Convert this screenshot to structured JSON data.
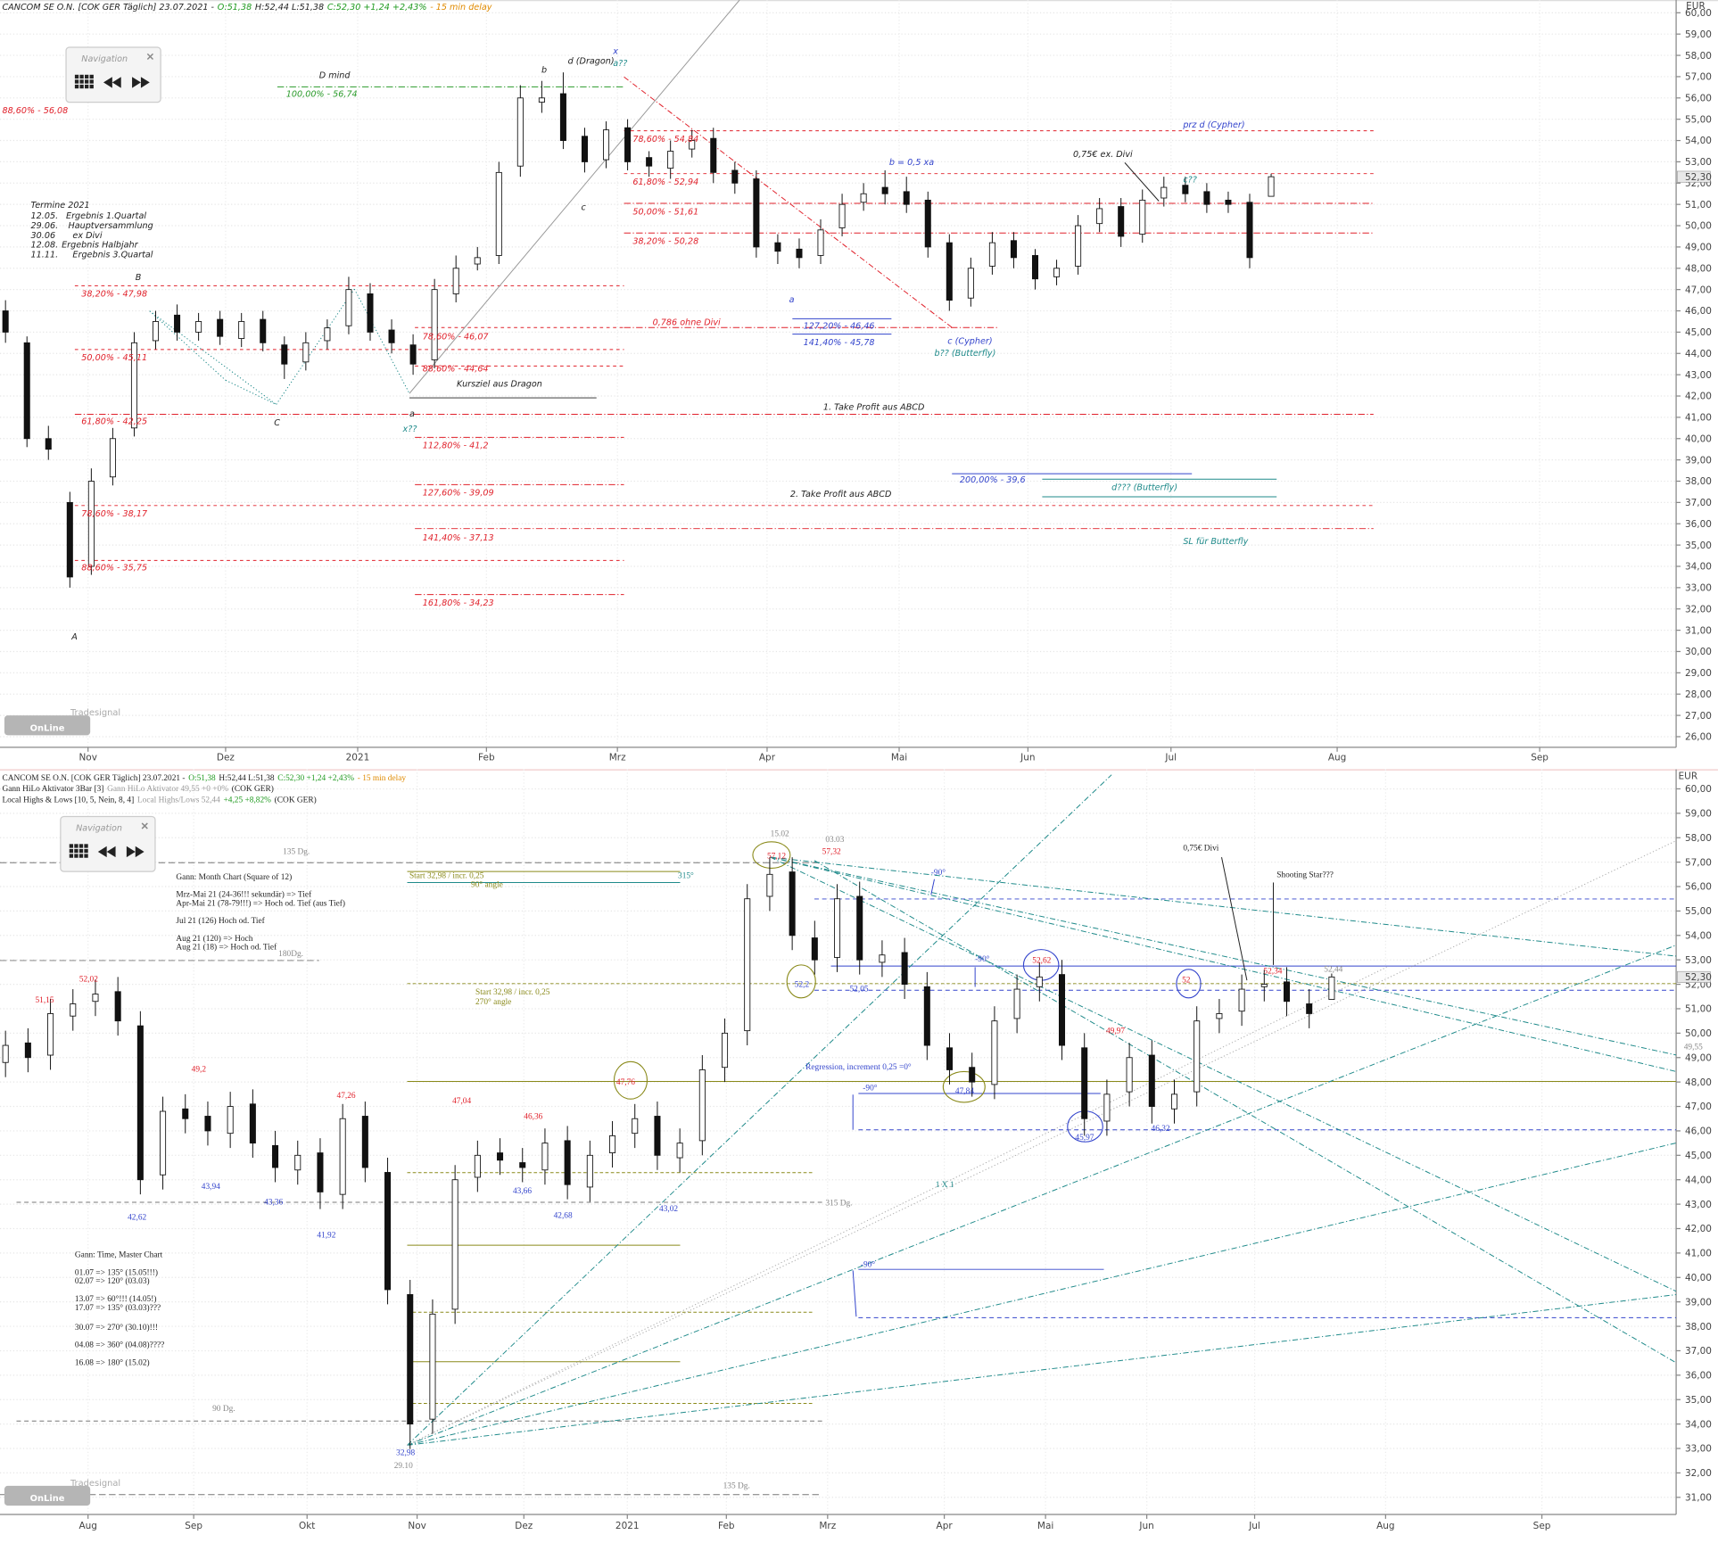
{
  "logo": {
    "brand": "Tradesignal",
    "name": "OnLine"
  },
  "chart_data": [
    {
      "type": "candlestick",
      "header": [
        [
          {
            "text": "CANCOM SE O.N. [COK GER Täglich] 23.07.2021 -",
            "color": "#222222"
          },
          {
            "text": "O:51,38",
            "color": "#1f9a1f"
          },
          {
            "text": "H:52,44 L:51,38",
            "color": "#222222"
          },
          {
            "text": "C:52,30 +1,24 +2,43%",
            "color": "#1f9a1f"
          },
          {
            "text": "- 15 min delay",
            "color": "#e08a00"
          }
        ]
      ],
      "navigation": "Navigation",
      "y_unit": "EUR",
      "last_price": "52,30",
      "ylim": [
        25.5,
        60.6
      ],
      "yticks": [
        {
          "value": 26,
          "label": "26,00"
        },
        {
          "value": 27,
          "label": "27,00"
        },
        {
          "value": 28,
          "label": "28,00"
        },
        {
          "value": 29,
          "label": "29,00"
        },
        {
          "value": 30,
          "label": "30,00"
        },
        {
          "value": 31,
          "label": "31,00"
        },
        {
          "value": 32,
          "label": "32,00"
        },
        {
          "value": 33,
          "label": "33,00"
        },
        {
          "value": 34,
          "label": "34,00"
        },
        {
          "value": 35,
          "label": "35,00"
        },
        {
          "value": 36,
          "label": "36,00"
        },
        {
          "value": 37,
          "label": "37,00"
        },
        {
          "value": 38,
          "label": "38,00"
        },
        {
          "value": 39,
          "label": "39,00"
        },
        {
          "value": 40,
          "label": "40,00"
        },
        {
          "value": 41,
          "label": "41,00"
        },
        {
          "value": 42,
          "label": "42,00"
        },
        {
          "value": 43,
          "label": "43,00"
        },
        {
          "value": 44,
          "label": "44,00"
        },
        {
          "value": 45,
          "label": "45,00"
        },
        {
          "value": 46,
          "label": "46,00"
        },
        {
          "value": 47,
          "label": "47,00"
        },
        {
          "value": 48,
          "label": "48,00"
        },
        {
          "value": 49,
          "label": "49,00"
        },
        {
          "value": 50,
          "label": "50,00"
        },
        {
          "value": 51,
          "label": "51,00"
        },
        {
          "value": 52,
          "label": "52,00"
        },
        {
          "value": 53,
          "label": "53,00"
        },
        {
          "value": 54,
          "label": "54,00"
        },
        {
          "value": 55,
          "label": "55,00"
        },
        {
          "value": 56,
          "label": "56,00"
        },
        {
          "value": 57,
          "label": "57,00"
        },
        {
          "value": 58,
          "label": "58,00"
        },
        {
          "value": 59,
          "label": "59,00"
        },
        {
          "value": 60,
          "label": "60,00"
        }
      ],
      "grid": true,
      "x_labels": [
        "Nov",
        "Dez",
        "2021",
        "Feb",
        "Mrz",
        "Apr",
        "Mai",
        "Jun",
        "Jul",
        "Aug",
        "Sep"
      ],
      "up_color": "#ffffff",
      "down_color": "#111111",
      "open": [
        46,
        44.5,
        40,
        37,
        34,
        38.2,
        40.5,
        44.6,
        45.8,
        45,
        45.6,
        44.7,
        45.6,
        44.4,
        43.6,
        44.6,
        45.3,
        46.8,
        45.1,
        44.4,
        43.7,
        46.8,
        48.2,
        48.6,
        52.8,
        55.8,
        56.2,
        54.2,
        53.1,
        54.6,
        53.2,
        52.7,
        53.6,
        54.1,
        52.6,
        52.2,
        49.2,
        48.9,
        48.6,
        49.9,
        51.1,
        51.8,
        51.6,
        51.2,
        49.2,
        46.6,
        48.1,
        49.3,
        48.6,
        47.6,
        48.1,
        50.1,
        50.9,
        49.6,
        51.3,
        51.9,
        51.6,
        51.2,
        51.1,
        51.38
      ],
      "high": [
        46.5,
        44.8,
        40.6,
        37.5,
        38.6,
        40.5,
        45,
        46,
        46.3,
        45.9,
        46,
        45.9,
        46,
        44.8,
        45,
        45.6,
        47.6,
        47.3,
        45.6,
        44.9,
        47.5,
        48.6,
        49,
        53,
        56.6,
        56.8,
        57.2,
        54.6,
        54.9,
        55,
        53.5,
        54,
        54.5,
        54.6,
        53,
        52.6,
        49.6,
        49.4,
        50.3,
        51.5,
        52,
        52.6,
        52.3,
        51.6,
        49.6,
        48.5,
        49.7,
        49.7,
        48.9,
        48.4,
        50.5,
        51.3,
        51.3,
        51.7,
        52.3,
        52.3,
        52,
        51.6,
        51.5,
        52.44
      ],
      "low": [
        44.5,
        39.6,
        39,
        33,
        33.6,
        37.8,
        40.1,
        44.2,
        44.6,
        44.6,
        44.4,
        44.3,
        44.1,
        42.8,
        43.2,
        44.2,
        44.9,
        44.6,
        44,
        43,
        43.3,
        46.4,
        47.9,
        48.2,
        52.3,
        55.3,
        53.6,
        52.5,
        52.7,
        52.6,
        52.3,
        52.2,
        53.2,
        52,
        51.5,
        48.5,
        48.2,
        48,
        48.2,
        49.5,
        50.7,
        51,
        50.6,
        48.5,
        46,
        46.2,
        47.7,
        48,
        47,
        47.2,
        47.7,
        49.7,
        49,
        49.2,
        50.9,
        51.1,
        50.6,
        50.6,
        48,
        51.38
      ],
      "close": [
        45,
        40,
        39.5,
        33.5,
        38,
        40,
        44.5,
        45.5,
        45,
        45.5,
        44.8,
        45.5,
        44.5,
        43.5,
        44.5,
        45.2,
        47,
        45,
        44.5,
        43.5,
        47,
        48,
        48.5,
        52.5,
        56,
        56,
        54,
        53,
        54.5,
        53,
        52.8,
        53.5,
        54,
        52.5,
        52,
        49,
        48.8,
        48.5,
        49.8,
        51,
        51.5,
        51.5,
        51,
        49,
        46.5,
        48,
        49.2,
        48.5,
        47.5,
        48,
        50,
        50.8,
        49.5,
        51.2,
        51.8,
        51.5,
        51,
        51,
        48.5,
        52.3
      ],
      "annotations": [
        "D mind",
        "100,00% - 56,74",
        "88,60% - 56,08",
        "b",
        "d (Dragon)",
        "x",
        "a??",
        "c",
        "78,60% - 54,84",
        "61,80% - 52,94",
        "50,00% - 51,61",
        "38,20% - 50,28",
        "b = 0,5 xa",
        "0,75€ ex. Divi",
        "c??",
        "prz d (Cypher)",
        "B",
        "38,20% - 47,98",
        "50,00% - 45,11",
        "61,80% - 42,25",
        "78,60% - 38,17",
        "88,60% - 35,75",
        "C",
        "A",
        "a",
        "x??",
        "78,60% - 46,07",
        "88,60% - 44,64",
        "Kursziel aus Dragon",
        "112,80% - 41,2",
        "127,60% - 39,09",
        "141,40% - 37,13",
        "161,80% - 34,23",
        "0,786 ohne Divi",
        "a",
        "127,20% - 46,46",
        "141,40% - 45,78",
        "c (Cypher)",
        "b?? (Butterfly)",
        "1. Take Profit aus ABCD",
        "200,00% - 39,6",
        "d??? (Butterfly)",
        "2. Take Profit aus ABCD",
        "SL für Butterfly"
      ],
      "schedule": {
        "title": "Termine 2021",
        "rows": [
          [
            "12.05.",
            "Ergebnis 1.Quartal"
          ],
          [
            "29.06.",
            "Hauptversammlung"
          ],
          [
            "30.06",
            "ex Divi"
          ],
          [
            "12.08.",
            "Ergebnis Halbjahr"
          ],
          [
            "11.11.",
            "Ergebnis 3.Quartal"
          ]
        ]
      }
    },
    {
      "type": "candlestick",
      "header": [
        [
          {
            "text": "CANCOM SE O.N. [COK GER Täglich] 23.07.2021 -",
            "color": "#222222"
          },
          {
            "text": "O:51,38",
            "color": "#1f9a1f"
          },
          {
            "text": "H:52,44 L:51,38",
            "color": "#222222"
          },
          {
            "text": "C:52,30 +1,24 +2,43%",
            "color": "#1f9a1f"
          },
          {
            "text": "- 15 min delay",
            "color": "#e08a00"
          }
        ],
        [
          {
            "text": "Gann HiLo Aktivator 3Bar [3]",
            "color": "#222222"
          },
          {
            "text": "Gann HiLo Aktivator 49,55 +0 +0%",
            "color": "#999999"
          },
          {
            "text": "(COK GER)",
            "color": "#222222"
          }
        ],
        [
          {
            "text": "Local Highs & Lows [10, 5, Nein, 8, 4]",
            "color": "#222222"
          },
          {
            "text": "Local Highs/Lows 52,44",
            "color": "#999999"
          },
          {
            "text": "+4,25 +8,82%",
            "color": "#1f9a1f"
          },
          {
            "text": "(COK GER)",
            "color": "#222222"
          }
        ]
      ],
      "navigation": "Navigation",
      "y_unit": "EUR",
      "last_price": "52,30",
      "ylim": [
        30.3,
        60.8
      ],
      "yticks": [
        {
          "value": 31,
          "label": "31,00"
        },
        {
          "value": 32,
          "label": "32,00"
        },
        {
          "value": 33,
          "label": "33,00"
        },
        {
          "value": 34,
          "label": "34,00"
        },
        {
          "value": 35,
          "label": "35,00"
        },
        {
          "value": 36,
          "label": "36,00"
        },
        {
          "value": 37,
          "label": "37,00"
        },
        {
          "value": 38,
          "label": "38,00"
        },
        {
          "value": 39,
          "label": "39,00"
        },
        {
          "value": 40,
          "label": "40,00"
        },
        {
          "value": 41,
          "label": "41,00"
        },
        {
          "value": 42,
          "label": "42,00"
        },
        {
          "value": 43,
          "label": "43,00"
        },
        {
          "value": 44,
          "label": "44,00"
        },
        {
          "value": 45,
          "label": "45,00"
        },
        {
          "value": 46,
          "label": "46,00"
        },
        {
          "value": 47,
          "label": "47,00"
        },
        {
          "value": 48,
          "label": "48,00"
        },
        {
          "value": 49,
          "label": "49,00"
        },
        {
          "value": 50,
          "label": "50,00"
        },
        {
          "value": 51,
          "label": "51,00"
        },
        {
          "value": 52,
          "label": "52,00"
        },
        {
          "value": 53,
          "label": "53,00"
        },
        {
          "value": 54,
          "label": "54,00"
        },
        {
          "value": 55,
          "label": "55,00"
        },
        {
          "value": 56,
          "label": "56,00"
        },
        {
          "value": 57,
          "label": "57,00"
        },
        {
          "value": 58,
          "label": "58,00"
        },
        {
          "value": 59,
          "label": "59,00"
        },
        {
          "value": 60,
          "label": "60,00"
        }
      ],
      "grid": true,
      "x_labels": [
        "Aug",
        "Sep",
        "Okt",
        "Nov",
        "Dez",
        "2021",
        "Feb",
        "Mrz",
        "Apr",
        "Mai",
        "Jun",
        "Jul",
        "Aug",
        "Sep"
      ],
      "up_color": "#ffffff",
      "down_color": "#111111",
      "open": [
        48.8,
        49.6,
        49.1,
        50.7,
        51.3,
        51.7,
        50.3,
        44.2,
        46.9,
        46.6,
        45.9,
        47.1,
        45.4,
        44.4,
        45.1,
        43.4,
        46.6,
        44.3,
        39.3,
        34.2,
        38.7,
        44.1,
        45.1,
        44.7,
        44.4,
        45.6,
        43.7,
        45.1,
        45.9,
        46.6,
        44.9,
        45.6,
        48.6,
        50.1,
        55.6,
        56.6,
        53.9,
        53.1,
        55.6,
        52.9,
        53.3,
        51.9,
        49.4,
        48.6,
        47.9,
        50.6,
        51.9,
        52.4,
        49.4,
        46.4,
        47.6,
        49.1,
        46.9,
        47.6,
        50.6,
        50.9,
        51.9,
        52.1,
        51.2,
        51.38
      ],
      "high": [
        50.1,
        50.2,
        51.4,
        51.8,
        52.2,
        52.3,
        50.9,
        47.4,
        47.5,
        47.2,
        47.6,
        47.7,
        46,
        45.6,
        45.7,
        47.1,
        47.2,
        44.9,
        39.9,
        39.1,
        44.6,
        45.6,
        45.7,
        45.3,
        46.1,
        46.2,
        45.6,
        46.4,
        47.1,
        47.2,
        46.1,
        49.1,
        50.6,
        56.1,
        57.2,
        57.2,
        54.6,
        56.1,
        56.2,
        53.8,
        53.9,
        52.5,
        50,
        49.2,
        51.1,
        52.4,
        52.9,
        53,
        50,
        48.1,
        49.6,
        49.7,
        48.1,
        51.1,
        51.4,
        52.4,
        52.6,
        52.7,
        51.8,
        52.44
      ],
      "low": [
        48.2,
        48.4,
        48.5,
        50.1,
        50.7,
        49.9,
        43.4,
        43.6,
        45.9,
        45.4,
        45.3,
        44.9,
        43.9,
        43.8,
        42.8,
        42.8,
        43.9,
        38.9,
        32.98,
        33.6,
        38.1,
        43.5,
        44.2,
        43.9,
        43.8,
        43.2,
        43.1,
        44.5,
        45.3,
        44.4,
        44.3,
        45,
        48,
        49.5,
        55,
        53.4,
        52.4,
        52.5,
        52.4,
        52.3,
        51.4,
        48.9,
        47.9,
        47.4,
        47.3,
        50,
        51.3,
        48.9,
        45.8,
        45.8,
        47,
        46.3,
        46.3,
        47,
        50,
        50.3,
        51.3,
        50.7,
        50.2,
        51.38
      ],
      "close": [
        49.5,
        49,
        50.8,
        51.2,
        51.6,
        50.5,
        44,
        46.8,
        46.5,
        46,
        47,
        45.5,
        44.5,
        45,
        43.5,
        46.5,
        44.5,
        39.5,
        34,
        38.5,
        44,
        45,
        44.8,
        44.5,
        45.5,
        43.8,
        45,
        45.8,
        46.5,
        45,
        45.5,
        48.5,
        50,
        55.5,
        56.5,
        54,
        53,
        55.5,
        53,
        53.2,
        52,
        49.5,
        48.5,
        48,
        50.5,
        51.8,
        52.3,
        49.5,
        46.5,
        47.5,
        49,
        47,
        47.5,
        50.5,
        50.8,
        51.8,
        52,
        51.3,
        50.8,
        52.3
      ],
      "annotations": [
        "135 Dg.",
        "Gann: Month Chart (Square of 12)",
        "Mrz-Mai 21 (24-36!!! sekundär) => Tief",
        "Apr-Mai 21 (78-79!!!) => Hoch od. Tief (aus Tief)",
        "Jul 21 (126) Hoch od. Tief",
        "Aug 21 (120) => Hoch",
        "Aug 21 (18) => Hoch od. Tief",
        "180Dg.",
        "Start 32,98 / incr. 0,25",
        "90° angle",
        "315°",
        "15.02",
        "57,12",
        "03.03",
        "57,32",
        "-90°",
        "0,75€ Divi",
        "Shooting Star???",
        "51,15",
        "52,02",
        "Start 32,98 / incr. 0,25",
        "270° angle",
        "52,2",
        "52,05",
        "-90°",
        "52,62",
        "52",
        "52,34",
        "52,44",
        "49,97",
        "49,2",
        "Regression, increment 0,25 =0°",
        "47,76",
        "47,84",
        "-90°",
        "47,26",
        "47,04",
        "46,36",
        "45,97",
        "46,32",
        "1 X 1",
        "43,94",
        "43,66",
        "43,36",
        "315 Dg.",
        "42,62",
        "42,68",
        "43,02",
        "41,92",
        "Gann: Time, Master Chart",
        "01.07 => 135° (15.05!!!)",
        "02.07 => 120° (03.03)",
        "13.07 => 60°!!! (14.05!)",
        "17.07 => 135° (03.03)???",
        "30.07 => 270° (30.10)!!!",
        "04.08 => 360° (04.08)????",
        "16.08 => 180° (15.02)",
        "-90°",
        "90 Dg.",
        "32,98",
        "29.10",
        "135 Dg.",
        "49,55"
      ]
    }
  ]
}
